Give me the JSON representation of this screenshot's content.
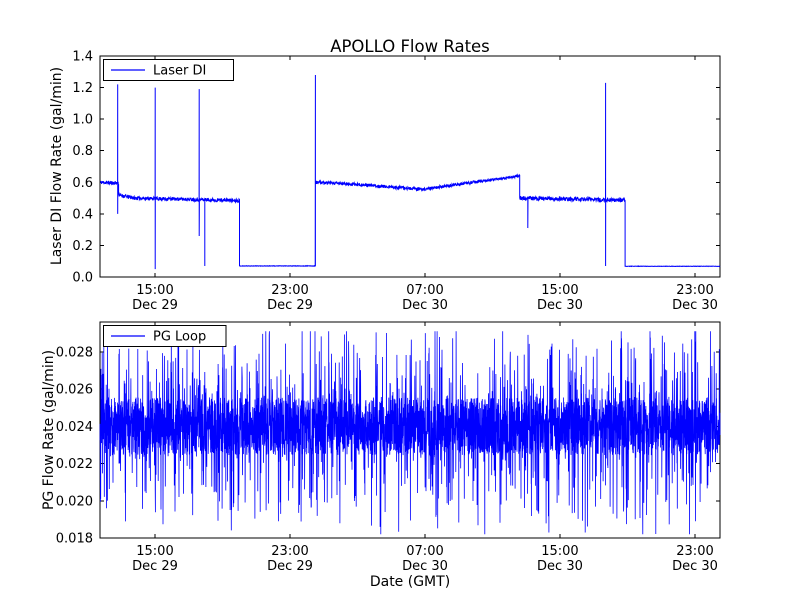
{
  "figure": {
    "background": "#ffffff",
    "frame_color": "#000000",
    "line_color": "#0000ff"
  },
  "chart_data": [
    {
      "id": "laser-di",
      "type": "line",
      "title": "APOLLO Flow Rates",
      "ylabel": "Laser DI Flow Rate (gal/min)",
      "legend": "Laser DI",
      "color": "#0000ff",
      "ylim": [
        0.0,
        1.4
      ],
      "yticks": [
        0.0,
        0.2,
        0.4,
        0.6,
        0.8,
        1.0,
        1.2,
        1.4
      ],
      "ytick_labels": [
        "0.0",
        "0.2",
        "0.4",
        "0.6",
        "0.8",
        "1.0",
        "1.2",
        "1.4"
      ],
      "xticks": [
        {
          "pos": 0.0887,
          "time": "15:00",
          "date": "Dec 29"
        },
        {
          "pos": 0.3065,
          "time": "23:00",
          "date": "Dec 29"
        },
        {
          "pos": 0.5242,
          "time": "07:00",
          "date": "Dec 30"
        },
        {
          "pos": 0.7419,
          "time": "15:00",
          "date": "Dec 30"
        },
        {
          "pos": 0.9597,
          "time": "23:00",
          "date": "Dec 30"
        }
      ],
      "seed": 11,
      "density": 2400,
      "segments": [
        {
          "x0": 0.0,
          "x1": 0.03,
          "y0": 0.6,
          "y1": 0.595,
          "noise": 0.012
        },
        {
          "x0": 0.03,
          "x1": 0.055,
          "y0": 0.52,
          "y1": 0.5,
          "noise": 0.012
        },
        {
          "x0": 0.055,
          "x1": 0.225,
          "y0": 0.5,
          "y1": 0.485,
          "noise": 0.011
        },
        {
          "x0": 0.225,
          "x1": 0.3475,
          "y0": 0.07,
          "y1": 0.07,
          "noise": 0.0015
        },
        {
          "x0": 0.3475,
          "x1": 0.42,
          "y0": 0.6,
          "y1": 0.585,
          "noise": 0.01
        },
        {
          "x0": 0.42,
          "x1": 0.52,
          "y0": 0.585,
          "y1": 0.555,
          "noise": 0.01
        },
        {
          "x0": 0.52,
          "x1": 0.63,
          "y0": 0.555,
          "y1": 0.615,
          "noise": 0.009
        },
        {
          "x0": 0.63,
          "x1": 0.677,
          "y0": 0.615,
          "y1": 0.64,
          "noise": 0.008
        },
        {
          "x0": 0.677,
          "x1": 0.847,
          "y0": 0.5,
          "y1": 0.487,
          "noise": 0.013
        },
        {
          "x0": 0.847,
          "x1": 1.0,
          "y0": 0.068,
          "y1": 0.068,
          "noise": 0.0012
        }
      ],
      "spikes": [
        {
          "x": 0.0285,
          "hi": 1.22,
          "lo": 0.4
        },
        {
          "x": 0.089,
          "hi": 1.2,
          "lo": 0.05
        },
        {
          "x": 0.16,
          "hi": 1.19,
          "lo": 0.26
        },
        {
          "x": 0.169,
          "hi": 0.49,
          "lo": 0.07
        },
        {
          "x": 0.3475,
          "hi": 1.28,
          "lo": 0.07
        },
        {
          "x": 0.69,
          "hi": 0.49,
          "lo": 0.31
        },
        {
          "x": 0.8155,
          "hi": 1.23,
          "lo": 0.07
        }
      ]
    },
    {
      "id": "pg-loop",
      "type": "line",
      "ylabel": "PG Flow Rate (gal/min)",
      "xlabel": "Date (GMT)",
      "legend": "PG Loop",
      "color": "#0000ff",
      "ylim": [
        0.018,
        0.0296
      ],
      "yticks": [
        0.018,
        0.02,
        0.022,
        0.024,
        0.026,
        0.028
      ],
      "ytick_labels": [
        "0.018",
        "0.020",
        "0.022",
        "0.024",
        "0.026",
        "0.028"
      ],
      "xticks": [
        {
          "pos": 0.0887,
          "time": "15:00",
          "date": "Dec 29"
        },
        {
          "pos": 0.3065,
          "time": "23:00",
          "date": "Dec 29"
        },
        {
          "pos": 0.5242,
          "time": "07:00",
          "date": "Dec 30"
        },
        {
          "pos": 0.7419,
          "time": "15:00",
          "date": "Dec 30"
        },
        {
          "pos": 0.9597,
          "time": "23:00",
          "date": "Dec 30"
        }
      ],
      "seed": 99,
      "noise": {
        "n": 4200,
        "center": 0.024,
        "core": 0.00155,
        "spike_prob": 0.3,
        "spike_extra": 0.0048,
        "min": 0.0182,
        "max": 0.0291
      }
    }
  ]
}
